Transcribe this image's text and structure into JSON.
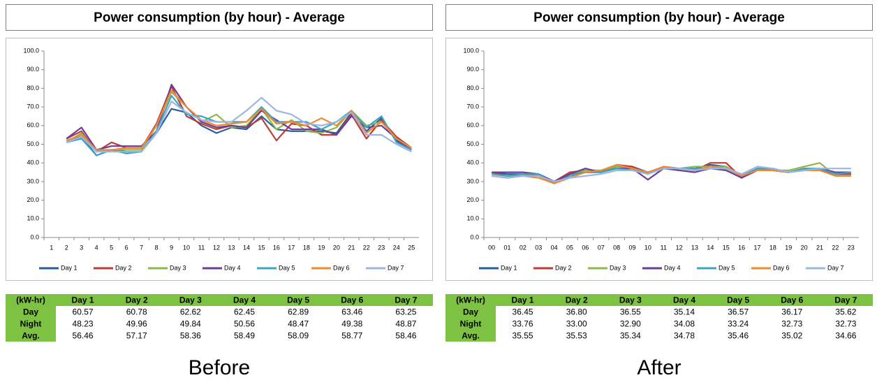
{
  "chart_data": [
    {
      "type": "line",
      "title": "Power consumption (by hour) - Average",
      "categories": [
        "1",
        "2",
        "3",
        "4",
        "5",
        "6",
        "7",
        "8",
        "9",
        "10",
        "11",
        "12",
        "13",
        "14",
        "15",
        "16",
        "17",
        "18",
        "19",
        "20",
        "21",
        "22",
        "23",
        "24",
        "25"
      ],
      "ylim": [
        0,
        100
      ],
      "yticks": [
        {
          "value": 0,
          "label": "0.0"
        },
        {
          "value": 10,
          "label": "10.0"
        },
        {
          "value": 20,
          "label": "20.0"
        },
        {
          "value": 30,
          "label": "30.0"
        },
        {
          "value": 40,
          "label": "40.0"
        },
        {
          "value": 50,
          "label": "50.0"
        },
        {
          "value": 60,
          "label": "60.0"
        },
        {
          "value": 70,
          "label": "70.0"
        },
        {
          "value": 80,
          "label": "80.0"
        },
        {
          "value": 90,
          "label": "90.0"
        },
        {
          "value": 100,
          "label": "100.0"
        }
      ],
      "grid": false,
      "legend": "bottom",
      "series": [
        {
          "name": "Day 1",
          "color": "#2a5d9c",
          "values": [
            null,
            52,
            54,
            44,
            47,
            46,
            46,
            56,
            69,
            67,
            60,
            56,
            59,
            58,
            65,
            58,
            57,
            57,
            57,
            56,
            67,
            57,
            64,
            52,
            47
          ]
        },
        {
          "name": "Day 2",
          "color": "#be3c36",
          "values": [
            null,
            53,
            57,
            46,
            51,
            48,
            48,
            61,
            81,
            65,
            61,
            58,
            60,
            59,
            64,
            52,
            61,
            60,
            55,
            55,
            66,
            53,
            63,
            54,
            48
          ]
        },
        {
          "name": "Day 3",
          "color": "#8db94c",
          "values": [
            null,
            51,
            56,
            46,
            47,
            47,
            47,
            60,
            78,
            70,
            62,
            66,
            59,
            60,
            69,
            58,
            63,
            57,
            56,
            59,
            68,
            60,
            62,
            53,
            48
          ]
        },
        {
          "name": "Day 4",
          "color": "#6a3f99",
          "values": [
            null,
            53,
            59,
            47,
            49,
            49,
            49,
            57,
            82,
            70,
            62,
            59,
            60,
            59,
            68,
            63,
            58,
            58,
            58,
            55,
            65,
            59,
            60,
            53,
            47
          ]
        },
        {
          "name": "Day 5",
          "color": "#3aa5c2",
          "values": [
            null,
            51,
            53,
            44,
            47,
            45,
            46,
            57,
            76,
            66,
            65,
            62,
            62,
            62,
            70,
            62,
            62,
            62,
            58,
            62,
            68,
            59,
            65,
            51,
            47
          ]
        },
        {
          "name": "Day 6",
          "color": "#f18a32",
          "values": [
            null,
            52,
            55,
            47,
            47,
            48,
            48,
            60,
            79,
            70,
            63,
            60,
            61,
            62,
            69,
            61,
            62,
            60,
            64,
            60,
            68,
            56,
            62,
            53,
            48
          ]
        },
        {
          "name": "Day 7",
          "color": "#9cb5e2",
          "values": [
            null,
            51,
            54,
            46,
            46,
            46,
            46,
            56,
            73,
            67,
            63,
            62,
            62,
            68,
            75,
            68,
            66,
            61,
            60,
            62,
            67,
            55,
            55,
            50,
            46
          ]
        }
      ]
    },
    {
      "type": "line",
      "title": "Power consumption (by hour) - Average",
      "categories": [
        "00",
        "01",
        "02",
        "03",
        "04",
        "05",
        "06",
        "07",
        "08",
        "09",
        "10",
        "11",
        "12",
        "13",
        "14",
        "15",
        "16",
        "17",
        "18",
        "19",
        "20",
        "21",
        "22",
        "23"
      ],
      "ylim": [
        0,
        100
      ],
      "yticks": [
        {
          "value": 0,
          "label": "0.0"
        },
        {
          "value": 10,
          "label": "10.0"
        },
        {
          "value": 20,
          "label": "20.0"
        },
        {
          "value": 30,
          "label": "30.0"
        },
        {
          "value": 40,
          "label": "40.0"
        },
        {
          "value": 50,
          "label": "50.0"
        },
        {
          "value": 60,
          "label": "60.0"
        },
        {
          "value": 70,
          "label": "70.0"
        },
        {
          "value": 80,
          "label": "80.0"
        },
        {
          "value": 90,
          "label": "90.0"
        },
        {
          "value": 100,
          "label": "100.0"
        }
      ],
      "grid": false,
      "legend": "bottom",
      "series": [
        {
          "name": "Day 1",
          "color": "#2a5d9c",
          "values": [
            35,
            34,
            34,
            34,
            30,
            34,
            35,
            35,
            38,
            38,
            35,
            37,
            37,
            37,
            39,
            38,
            33,
            36,
            36,
            35,
            36,
            36,
            34,
            34
          ]
        },
        {
          "name": "Day 2",
          "color": "#be3c36",
          "values": [
            35,
            33,
            34,
            33,
            30,
            35,
            36,
            35,
            39,
            38,
            34,
            38,
            37,
            36,
            40,
            40,
            32,
            37,
            36,
            35,
            37,
            36,
            34,
            34
          ]
        },
        {
          "name": "Day 3",
          "color": "#8db94c",
          "values": [
            34,
            33,
            33,
            33,
            29,
            34,
            36,
            36,
            38,
            37,
            35,
            37,
            37,
            38,
            38,
            38,
            33,
            37,
            36,
            36,
            38,
            40,
            33,
            33
          ]
        },
        {
          "name": "Day 4",
          "color": "#6a3f99",
          "values": [
            35,
            35,
            35,
            34,
            30,
            34,
            37,
            35,
            37,
            37,
            31,
            37,
            36,
            35,
            37,
            36,
            32,
            36,
            36,
            35,
            36,
            37,
            35,
            35
          ]
        },
        {
          "name": "Day 5",
          "color": "#3aa5c2",
          "values": [
            34,
            33,
            34,
            34,
            29,
            33,
            35,
            35,
            37,
            36,
            35,
            37,
            37,
            37,
            37,
            37,
            33,
            37,
            37,
            35,
            37,
            37,
            34,
            35
          ]
        },
        {
          "name": "Day 6",
          "color": "#f18a32",
          "values": [
            33,
            32,
            33,
            32,
            29,
            32,
            35,
            36,
            39,
            37,
            35,
            38,
            37,
            36,
            38,
            37,
            33,
            36,
            36,
            35,
            36,
            36,
            33,
            33
          ]
        },
        {
          "name": "Day 7",
          "color": "#9cb5e2",
          "values": [
            33,
            32,
            33,
            33,
            30,
            32,
            33,
            34,
            36,
            36,
            34,
            37,
            37,
            36,
            37,
            37,
            34,
            38,
            37,
            35,
            36,
            37,
            37,
            37
          ]
        }
      ]
    }
  ],
  "tables": [
    {
      "header": [
        "(kW-hr)",
        "Day 1",
        "Day 2",
        "Day 3",
        "Day 4",
        "Day 5",
        "Day 6",
        "Day 7"
      ],
      "rows": [
        [
          "Day",
          "60.57",
          "60.78",
          "62.62",
          "62.45",
          "62.89",
          "63.46",
          "63.25"
        ],
        [
          "Night",
          "48.23",
          "49.96",
          "49.84",
          "50.56",
          "48.47",
          "49.38",
          "48.87"
        ],
        [
          "Avg.",
          "56.46",
          "57.17",
          "58.36",
          "58.49",
          "58.09",
          "58.77",
          "58.46"
        ]
      ]
    },
    {
      "header": [
        "(kW-hr)",
        "Day 1",
        "Day 2",
        "Day 3",
        "Day 4",
        "Day 5",
        "Day 6",
        "Day 7"
      ],
      "rows": [
        [
          "Day",
          "36.45",
          "36.80",
          "36.55",
          "35.14",
          "36.57",
          "36.17",
          "35.62"
        ],
        [
          "Night",
          "33.76",
          "33.00",
          "32.90",
          "34.08",
          "33.24",
          "32.73",
          "32.73"
        ],
        [
          "Avg.",
          "35.55",
          "35.53",
          "35.34",
          "34.78",
          "35.46",
          "35.02",
          "34.66"
        ]
      ]
    }
  ],
  "captions": [
    "Before",
    "After"
  ]
}
